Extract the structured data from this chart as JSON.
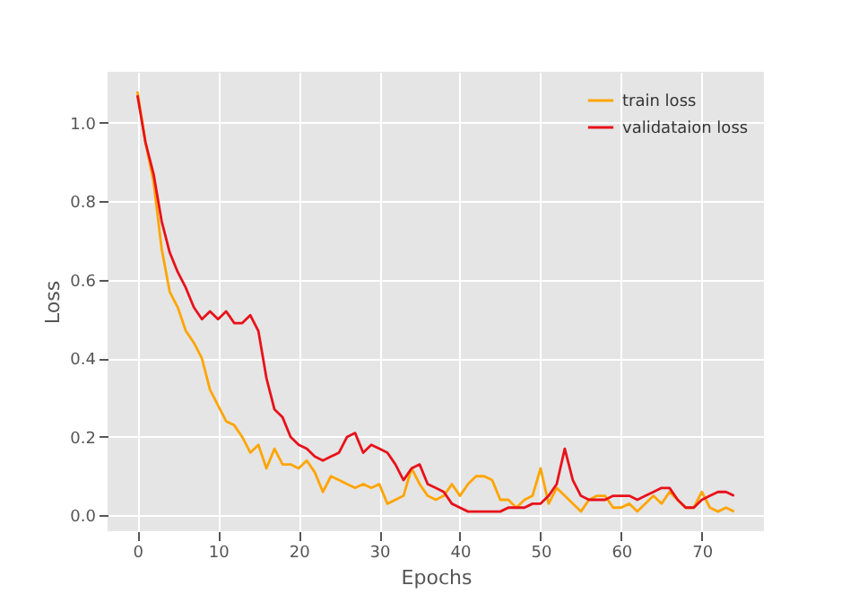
{
  "chart_data": {
    "type": "line",
    "xlabel": "Epochs",
    "ylabel": "Loss",
    "x": [
      0,
      1,
      2,
      3,
      4,
      5,
      6,
      7,
      8,
      9,
      10,
      11,
      12,
      13,
      14,
      15,
      16,
      17,
      18,
      19,
      20,
      21,
      22,
      23,
      24,
      25,
      26,
      27,
      28,
      29,
      30,
      31,
      32,
      33,
      34,
      35,
      36,
      37,
      38,
      39,
      40,
      41,
      42,
      43,
      44,
      45,
      46,
      47,
      48,
      49,
      50,
      51,
      52,
      53,
      54,
      55,
      56,
      57,
      58,
      59,
      60,
      61,
      62,
      63,
      64,
      65,
      66,
      67,
      68,
      69,
      70,
      71,
      72,
      73,
      74
    ],
    "series": [
      {
        "name": "train loss",
        "color": "#ffa500",
        "values": [
          1.08,
          0.95,
          0.85,
          0.68,
          0.57,
          0.53,
          0.47,
          0.44,
          0.4,
          0.32,
          0.28,
          0.24,
          0.23,
          0.2,
          0.16,
          0.18,
          0.12,
          0.17,
          0.13,
          0.13,
          0.12,
          0.14,
          0.11,
          0.06,
          0.1,
          0.09,
          0.08,
          0.07,
          0.08,
          0.07,
          0.08,
          0.03,
          0.04,
          0.05,
          0.12,
          0.08,
          0.05,
          0.04,
          0.05,
          0.08,
          0.05,
          0.08,
          0.1,
          0.1,
          0.09,
          0.04,
          0.04,
          0.02,
          0.04,
          0.05,
          0.12,
          0.03,
          0.07,
          0.05,
          0.03,
          0.01,
          0.04,
          0.05,
          0.05,
          0.02,
          0.02,
          0.03,
          0.01,
          0.03,
          0.05,
          0.03,
          0.06,
          0.04,
          0.02,
          0.02,
          0.06,
          0.02,
          0.01,
          0.02,
          0.01
        ]
      },
      {
        "name": "validataion loss",
        "color": "#e8111a",
        "values": [
          1.07,
          0.95,
          0.87,
          0.75,
          0.67,
          0.62,
          0.58,
          0.53,
          0.5,
          0.52,
          0.5,
          0.52,
          0.49,
          0.49,
          0.51,
          0.47,
          0.35,
          0.27,
          0.25,
          0.2,
          0.18,
          0.17,
          0.15,
          0.14,
          0.15,
          0.16,
          0.2,
          0.21,
          0.16,
          0.18,
          0.17,
          0.16,
          0.13,
          0.09,
          0.12,
          0.13,
          0.08,
          0.07,
          0.06,
          0.03,
          0.02,
          0.01,
          0.01,
          0.01,
          0.01,
          0.01,
          0.02,
          0.02,
          0.02,
          0.03,
          0.03,
          0.05,
          0.08,
          0.17,
          0.09,
          0.05,
          0.04,
          0.04,
          0.04,
          0.05,
          0.05,
          0.05,
          0.04,
          0.05,
          0.06,
          0.07,
          0.07,
          0.04,
          0.02,
          0.02,
          0.04,
          0.05,
          0.06,
          0.06,
          0.05
        ]
      }
    ],
    "xlim": [
      -3.7,
      77.7
    ],
    "xticks": [
      0,
      10,
      20,
      30,
      40,
      50,
      60,
      70
    ],
    "ylim": [
      -0.04,
      1.13
    ],
    "yticks": [
      {
        "value": 0,
        "label": "0.0"
      },
      0.2,
      0.4,
      0.6,
      0.8,
      {
        "value": 1,
        "label": "1.0"
      }
    ],
    "grid": true,
    "legend": "top right",
    "marker": "none",
    "line_style": "solid"
  }
}
